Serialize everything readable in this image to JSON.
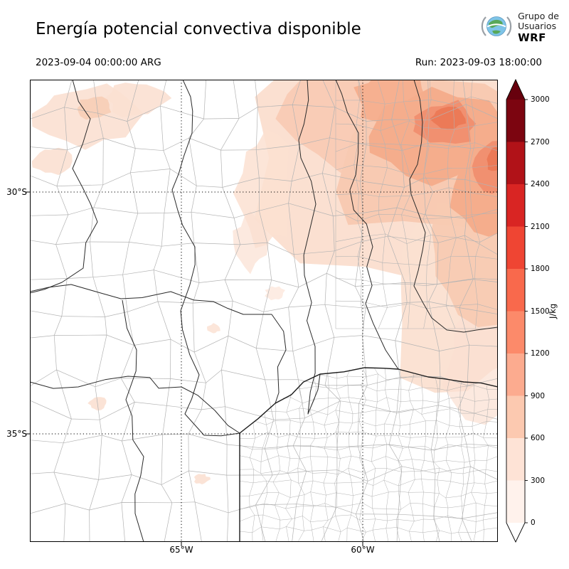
{
  "title": "Energía potencial convectiva disponible",
  "logo": {
    "line1": "Grupo de",
    "line2": "Usuarios",
    "line3": "WRF"
  },
  "valid_time": "2023-09-04 00:00:00 ARG",
  "run_label": "Run: 2023-09-03 18:00:00",
  "axes": {
    "lat_labels": [
      "30°S",
      "35°S"
    ],
    "lon_labels": [
      "65°W",
      "60°W"
    ]
  },
  "colorbar": {
    "label": "J/kg",
    "ticks": [
      "3000",
      "2700",
      "2400",
      "2100",
      "1800",
      "1500",
      "1200",
      "900",
      "600",
      "300",
      "0"
    ],
    "segment_colors_top_to_bottom": [
      "#7c0510",
      "#b11218",
      "#d92523",
      "#ef4533",
      "#f9694c",
      "#fc8a6a",
      "#fcab8f",
      "#fcc9b0",
      "#fee3d6",
      "#fff2ec"
    ],
    "over_arrow_color": "#67000d",
    "under_arrow_color": "#ffffff"
  },
  "chart_data": {
    "type": "heatmap",
    "title": "Energía potencial convectiva disponible",
    "units": "J/kg",
    "value_range": [
      0,
      3000
    ],
    "colorbar_tick_values": [
      0,
      300,
      600,
      900,
      1200,
      1500,
      1800,
      2100,
      2400,
      2700,
      3000
    ],
    "field_summary": [
      {
        "region": "upper-right quadrant of map (north of 30°S, east half)",
        "value_range_jkg": "300-900"
      },
      {
        "region": "local maxima patches near top-right corner",
        "value_range_jkg": "900-1200"
      },
      {
        "region": "small patches upper-left corner",
        "value_range_jkg": "0-300"
      },
      {
        "region": "remainder of domain",
        "value_range_jkg": "0"
      }
    ]
  }
}
